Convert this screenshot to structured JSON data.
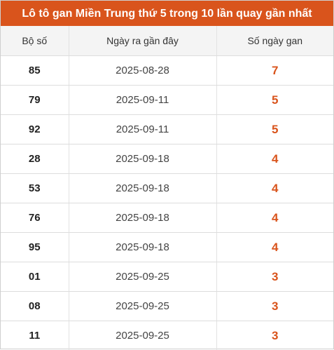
{
  "title": "Lô tô gan Miền Trung thứ 5 trong 10 lần quay gần nhất",
  "headers": {
    "number": "Bộ số",
    "last_date": "Ngày ra gần đây",
    "gan_days": "Số ngày gan"
  },
  "rows": [
    {
      "number": "85",
      "last_date": "2025-08-28",
      "gan_days": "7"
    },
    {
      "number": "79",
      "last_date": "2025-09-11",
      "gan_days": "5"
    },
    {
      "number": "92",
      "last_date": "2025-09-11",
      "gan_days": "5"
    },
    {
      "number": "28",
      "last_date": "2025-09-18",
      "gan_days": "4"
    },
    {
      "number": "53",
      "last_date": "2025-09-18",
      "gan_days": "4"
    },
    {
      "number": "76",
      "last_date": "2025-09-18",
      "gan_days": "4"
    },
    {
      "number": "95",
      "last_date": "2025-09-18",
      "gan_days": "4"
    },
    {
      "number": "01",
      "last_date": "2025-09-25",
      "gan_days": "3"
    },
    {
      "number": "08",
      "last_date": "2025-09-25",
      "gan_days": "3"
    },
    {
      "number": "11",
      "last_date": "2025-09-25",
      "gan_days": "3"
    }
  ],
  "colors": {
    "accent": "#d9541c",
    "header_bg": "#f4f4f4"
  }
}
